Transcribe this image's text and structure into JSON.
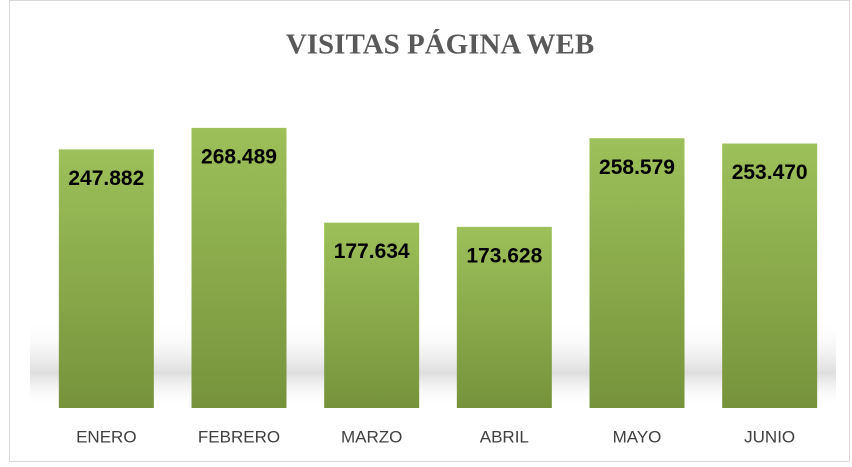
{
  "chart_data": {
    "type": "bar",
    "title": "VISITAS PÁGINA WEB",
    "categories": [
      "ENERO",
      "FEBRERO",
      "MARZO",
      "ABRIL",
      "MAYO",
      "JUNIO"
    ],
    "values": [
      247882,
      268489,
      177634,
      173628,
      258579,
      253470
    ],
    "value_labels": [
      "247.882",
      "268.489",
      "177.634",
      "173.628",
      "258.579",
      "253.470"
    ],
    "color": "#8fb04c",
    "ylim": [
      0,
      300000
    ]
  }
}
